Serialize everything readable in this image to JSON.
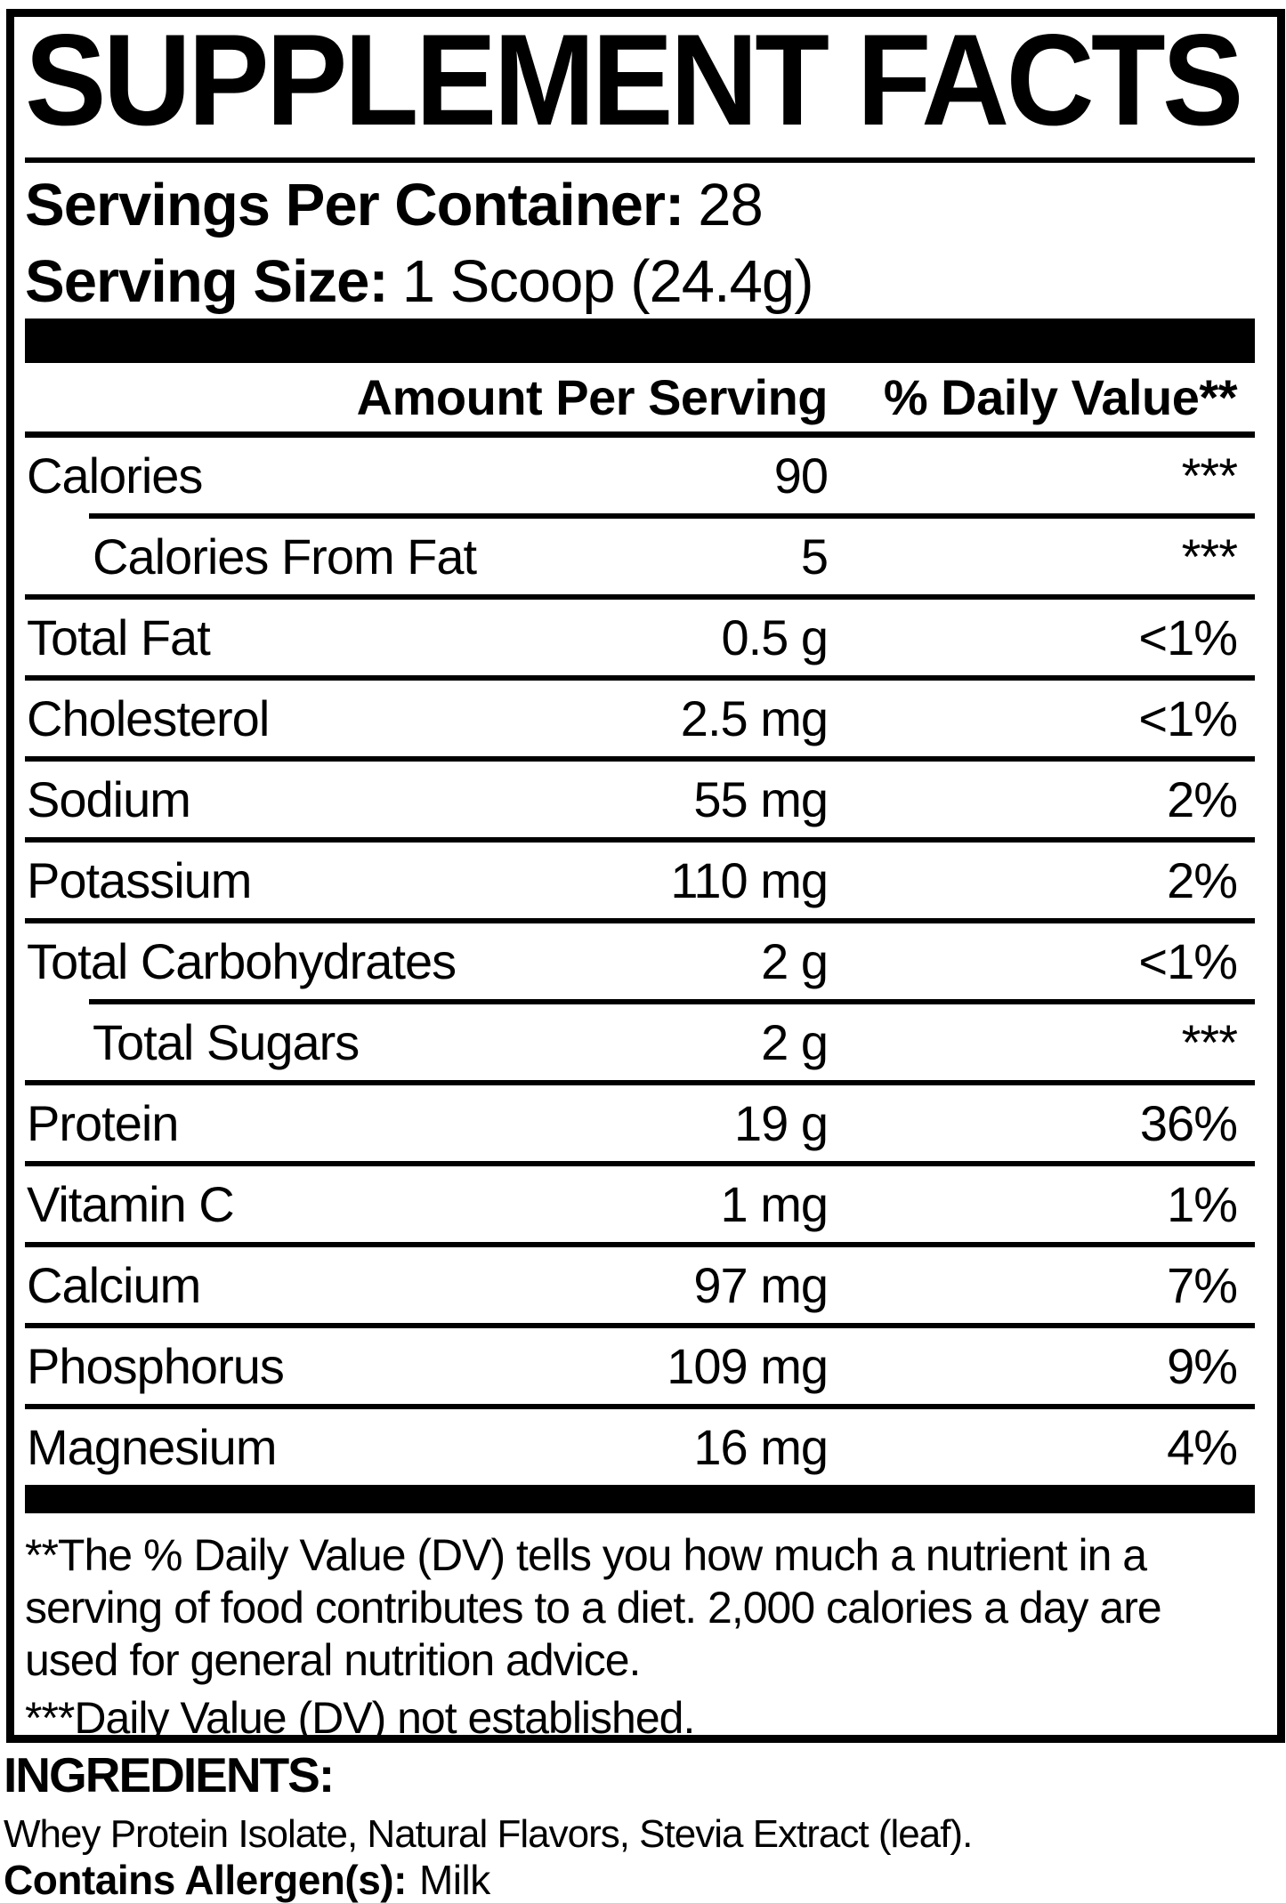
{
  "colors": {
    "ink": "#000000",
    "paper": "#ffffff"
  },
  "title": "SUPPLEMENT FACTS",
  "servings": {
    "label": "Servings Per Container:",
    "value": "28"
  },
  "serving_size": {
    "label": "Serving Size:",
    "value": "1 Scoop (24.4g)"
  },
  "table": {
    "header": {
      "amount": "Amount Per Serving",
      "dv": "% Daily Value**"
    },
    "rows": [
      {
        "label": "Calories",
        "amount": "90",
        "dv": "***"
      },
      {
        "label": "Calories From Fat",
        "amount": "5",
        "dv": "***"
      },
      {
        "label": "Total Fat",
        "amount": "0.5 g",
        "dv": "<1%"
      },
      {
        "label": "Cholesterol",
        "amount": "2.5 mg",
        "dv": "<1%"
      },
      {
        "label": "Sodium",
        "amount": "55 mg",
        "dv": "2%"
      },
      {
        "label": "Potassium",
        "amount": "110 mg",
        "dv": "2%"
      },
      {
        "label": "Total Carbohydrates",
        "amount": "2 g",
        "dv": "<1%"
      },
      {
        "label": "Total Sugars",
        "amount": "2 g",
        "dv": "***"
      },
      {
        "label": "Protein",
        "amount": "19 g",
        "dv": "36%"
      },
      {
        "label": "Vitamin C",
        "amount": "1 mg",
        "dv": "1%"
      },
      {
        "label": "Calcium",
        "amount": "97 mg",
        "dv": "7%"
      },
      {
        "label": "Phosphorus",
        "amount": "109 mg",
        "dv": "9%"
      },
      {
        "label": "Magnesium",
        "amount": "16 mg",
        "dv": "4%"
      }
    ]
  },
  "footnotes": {
    "dv_note": "**The % Daily Value (DV) tells you how much a nutrient in a serving of food contributes to a diet. 2,000 calories a day are used for general nutrition advice.",
    "not_established": "***Daily Value (DV) not established."
  },
  "ingredients": {
    "heading": "INGREDIENTS:",
    "list": "Whey Protein Isolate, Natural Flavors, Stevia Extract (leaf).",
    "allergen_label": "Contains Allergen(s):",
    "allergen_value": "Milk"
  }
}
